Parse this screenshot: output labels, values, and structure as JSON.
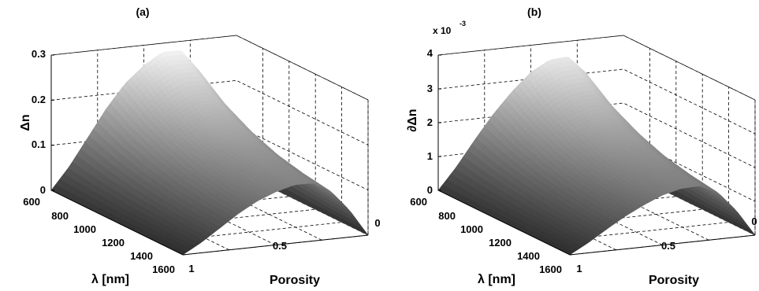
{
  "chart_data": [
    {
      "type": "surface",
      "title": "(a)",
      "xlabel": "λ [nm]",
      "ylabel": "Porosity",
      "zlabel": "Δn",
      "x_ticks": [
        "600",
        "800",
        "1000",
        "1200",
        "1400",
        "1600"
      ],
      "x_range": [
        600,
        1600
      ],
      "y_ticks": [
        "0",
        "0.5",
        "1"
      ],
      "y_range": [
        0,
        1
      ],
      "z_ticks": [
        "0",
        "0.1",
        "0.2",
        "0.3"
      ],
      "z_range": [
        0,
        0.3
      ],
      "exponent_label": "",
      "grid": true,
      "colormap": "gray",
      "surface_profile": {
        "porosity": [
          0,
          0.1,
          0.2,
          0.3,
          0.4,
          0.5,
          0.6,
          0.7,
          0.8,
          0.9,
          1.0
        ],
        "peak_value_at_600nm": [
          0,
          0.13,
          0.23,
          0.28,
          0.28,
          0.255,
          0.22,
          0.17,
          0.11,
          0.05,
          0
        ],
        "wavelength_decay": [
          1.0,
          0.8,
          0.66,
          0.56,
          0.5,
          0.46
        ]
      }
    },
    {
      "type": "surface",
      "title": "(b)",
      "xlabel": "λ [nm]",
      "ylabel": "Porosity",
      "zlabel": "∂Δn",
      "x_ticks": [
        "600",
        "800",
        "1000",
        "1200",
        "1400",
        "1600"
      ],
      "x_range": [
        600,
        1600
      ],
      "y_ticks": [
        "0",
        "0.5",
        "1"
      ],
      "y_range": [
        0,
        1
      ],
      "z_ticks": [
        "0",
        "1",
        "2",
        "3",
        "4"
      ],
      "z_range": [
        0,
        4
      ],
      "exponent_label": "x 10",
      "exponent_power": "-3",
      "grid": true,
      "colormap": "gray",
      "surface_profile": {
        "porosity": [
          0,
          0.1,
          0.2,
          0.3,
          0.4,
          0.5,
          0.6,
          0.7,
          0.8,
          0.9,
          1.0
        ],
        "peak_value_at_600nm": [
          0,
          1.7,
          3.0,
          3.55,
          3.5,
          3.2,
          2.7,
          2.1,
          1.4,
          0.65,
          0
        ],
        "wavelength_decay": [
          1.0,
          0.8,
          0.66,
          0.56,
          0.5,
          0.46
        ]
      }
    }
  ]
}
